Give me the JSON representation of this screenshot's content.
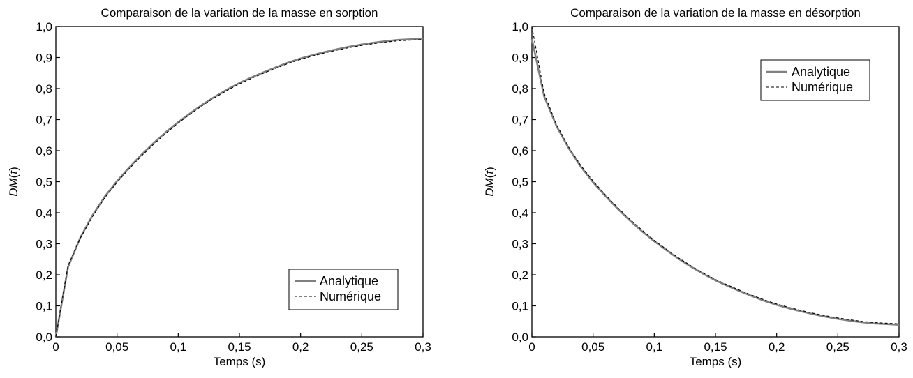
{
  "chart_data": [
    {
      "type": "line",
      "title": "Comparaison de la variation de la masse en sorption",
      "xlabel": "Temps (s)",
      "ylabel_main": "DM",
      "ylabel_var": "t",
      "xlim": [
        0,
        0.3
      ],
      "ylim": [
        0,
        1.0
      ],
      "xticks": [
        0,
        0.05,
        0.1,
        0.15,
        0.2,
        0.25,
        0.3
      ],
      "xtick_labels": [
        "0",
        "0,05",
        "0,1",
        "0,15",
        "0,2",
        "0,25",
        "0,3"
      ],
      "yticks": [
        0,
        0.1,
        0.2,
        0.3,
        0.4,
        0.5,
        0.6,
        0.7,
        0.8,
        0.9,
        1.0
      ],
      "ytick_labels": [
        "0,0",
        "0,1",
        "0,2",
        "0,3",
        "0,4",
        "0,5",
        "0,6",
        "0,7",
        "0,8",
        "0,9",
        "1,0"
      ],
      "grid": false,
      "legend_position": "bottom-right",
      "x": [
        0,
        0.01,
        0.02,
        0.03,
        0.04,
        0.05,
        0.06,
        0.07,
        0.08,
        0.09,
        0.1,
        0.11,
        0.12,
        0.13,
        0.14,
        0.15,
        0.16,
        0.17,
        0.18,
        0.19,
        0.2,
        0.21,
        0.22,
        0.23,
        0.24,
        0.25,
        0.26,
        0.27,
        0.28,
        0.29,
        0.3
      ],
      "series": [
        {
          "name": "Analytique",
          "color": "#808080",
          "style": "solid",
          "values": [
            0.0,
            0.225,
            0.32,
            0.392,
            0.452,
            0.502,
            0.546,
            0.587,
            0.625,
            0.66,
            0.692,
            0.721,
            0.749,
            0.774,
            0.797,
            0.818,
            0.836,
            0.853,
            0.869,
            0.884,
            0.897,
            0.908,
            0.918,
            0.927,
            0.935,
            0.942,
            0.948,
            0.953,
            0.957,
            0.959,
            0.961
          ]
        },
        {
          "name": "Numérique",
          "color": "#000000",
          "style": "dashed",
          "values": [
            0.0,
            0.23,
            0.318,
            0.388,
            0.448,
            0.498,
            0.542,
            0.583,
            0.621,
            0.656,
            0.689,
            0.718,
            0.746,
            0.771,
            0.794,
            0.815,
            0.833,
            0.85,
            0.866,
            0.881,
            0.894,
            0.905,
            0.915,
            0.924,
            0.932,
            0.939,
            0.945,
            0.95,
            0.954,
            0.956,
            0.958
          ]
        }
      ]
    },
    {
      "type": "line",
      "title": "Comparaison de la variation de la masse en désorption",
      "xlabel": "Temps (s)",
      "ylabel_main": "DM",
      "ylabel_var": "t",
      "xlim": [
        0,
        0.3
      ],
      "ylim": [
        0,
        1.0
      ],
      "xticks": [
        0,
        0.05,
        0.1,
        0.15,
        0.2,
        0.25,
        0.3
      ],
      "xtick_labels": [
        "0",
        "0,05",
        "0,1",
        "0,15",
        "0,2",
        "0,25",
        "0,3"
      ],
      "yticks": [
        0,
        0.1,
        0.2,
        0.3,
        0.4,
        0.5,
        0.6,
        0.7,
        0.8,
        0.9,
        1.0
      ],
      "ytick_labels": [
        "0,0",
        "0,1",
        "0,2",
        "0,3",
        "0,4",
        "0,5",
        "0,6",
        "0,7",
        "0,8",
        "0,9",
        "1,0"
      ],
      "grid": false,
      "legend_position": "top-right",
      "x": [
        0,
        0.01,
        0.02,
        0.03,
        0.04,
        0.05,
        0.06,
        0.07,
        0.08,
        0.09,
        0.1,
        0.11,
        0.12,
        0.13,
        0.14,
        0.15,
        0.16,
        0.17,
        0.18,
        0.19,
        0.2,
        0.21,
        0.22,
        0.23,
        0.24,
        0.25,
        0.26,
        0.27,
        0.28,
        0.29,
        0.3
      ],
      "series": [
        {
          "name": "Analytique",
          "color": "#808080",
          "style": "solid",
          "values": [
            0.96,
            0.775,
            0.68,
            0.608,
            0.548,
            0.498,
            0.454,
            0.413,
            0.375,
            0.34,
            0.308,
            0.279,
            0.251,
            0.226,
            0.203,
            0.182,
            0.164,
            0.147,
            0.131,
            0.116,
            0.103,
            0.092,
            0.082,
            0.073,
            0.065,
            0.058,
            0.052,
            0.047,
            0.043,
            0.041,
            0.039
          ]
        },
        {
          "name": "Numérique",
          "color": "#000000",
          "style": "dashed",
          "values": [
            1.0,
            0.785,
            0.685,
            0.612,
            0.552,
            0.502,
            0.458,
            0.417,
            0.379,
            0.344,
            0.311,
            0.282,
            0.254,
            0.229,
            0.206,
            0.185,
            0.167,
            0.15,
            0.134,
            0.119,
            0.106,
            0.095,
            0.085,
            0.076,
            0.068,
            0.061,
            0.055,
            0.05,
            0.046,
            0.044,
            0.042
          ]
        }
      ]
    }
  ]
}
